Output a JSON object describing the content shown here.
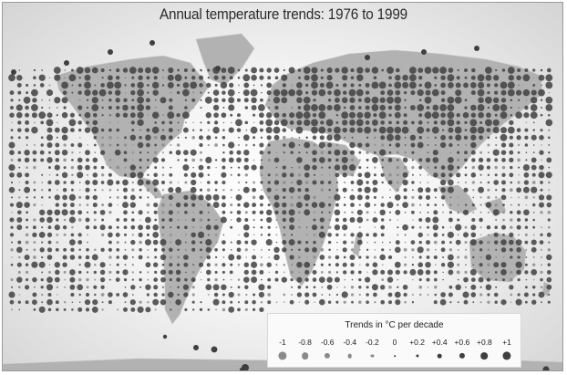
{
  "title": "Annual temperature trends:  1976 to 1999",
  "map": {
    "region": "world",
    "projection": "equirectangular",
    "grid_spacing_deg": 5,
    "colors": {
      "warming": "#3f3f3f",
      "cooling": "#8a8a8a",
      "land": "#b2b2b2",
      "ocean": "#f2f2f2"
    }
  },
  "legend": {
    "title": "Trends in °C per decade",
    "items": [
      {
        "label": "-1",
        "value": -1.0
      },
      {
        "label": "-0.8",
        "value": -0.8
      },
      {
        "label": "-0.6",
        "value": -0.6
      },
      {
        "label": "-0.4",
        "value": -0.4
      },
      {
        "label": "-0.2",
        "value": -0.2
      },
      {
        "label": "0",
        "value": 0.0
      },
      {
        "label": "+0.2",
        "value": 0.2
      },
      {
        "label": "+0.4",
        "value": 0.4
      },
      {
        "label": "+0.6",
        "value": 0.6
      },
      {
        "label": "+0.8",
        "value": 0.8
      },
      {
        "label": "+1",
        "value": 1.0
      }
    ]
  }
}
